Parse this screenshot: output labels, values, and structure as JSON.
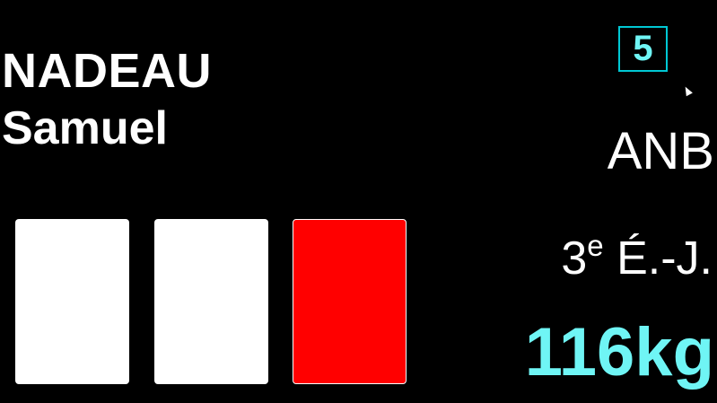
{
  "athlete": {
    "last_name": "NADEAU",
    "first_name": "Samuel"
  },
  "attempt_number": "5",
  "team": "ANB",
  "category": {
    "ordinal_number": "3",
    "ordinal_suffix": "e",
    "group": "É.-J."
  },
  "weight": "116kg",
  "referee_lights": [
    {
      "decision": "good",
      "color": "#ffffff"
    },
    {
      "decision": "good",
      "color": "#ffffff"
    },
    {
      "decision": "no-lift",
      "color": "#ff0000"
    }
  ],
  "colors": {
    "background": "#000000",
    "text": "#ffffff",
    "accent": "#6ff5f5",
    "badge_border": "#00c8d4",
    "no_lift": "#ff0000",
    "good_lift": "#ffffff"
  },
  "icons": {
    "cursor": "mouse-pointer-icon"
  }
}
